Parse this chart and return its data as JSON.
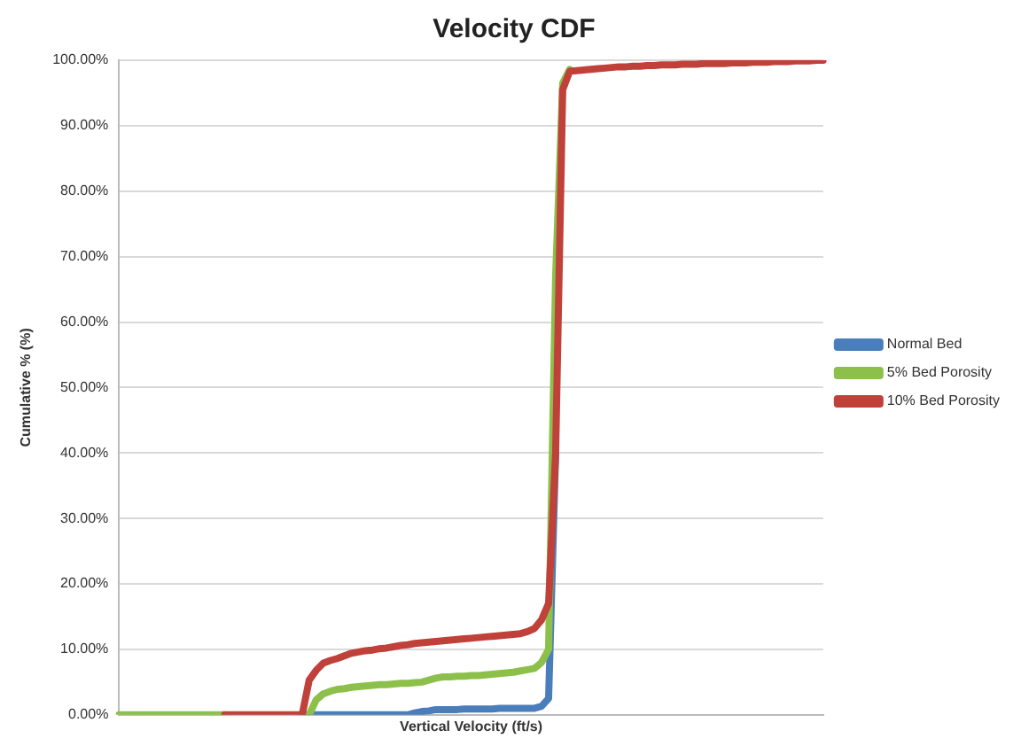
{
  "chart_data": {
    "type": "line",
    "title": "Velocity CDF",
    "xlabel": "Vertical Velocity (ft/s)",
    "ylabel": "Cumulative % (%)",
    "categories": [
      null,
      null,
      null,
      null,
      null,
      null,
      null,
      null,
      null,
      null,
      null,
      null,
      null,
      null,
      null,
      null,
      null,
      null,
      null,
      null,
      null,
      null,
      null,
      null,
      null,
      null,
      null,
      null,
      null,
      null,
      null,
      null,
      null,
      null,
      null,
      null,
      null,
      null,
      null,
      null,
      null,
      null,
      null,
      null,
      null,
      null,
      null,
      null,
      null,
      null,
      null,
      null,
      null,
      null,
      null,
      null,
      null,
      null,
      null,
      null,
      null,
      null,
      null,
      null,
      null,
      null,
      null,
      null,
      null,
      null,
      null,
      null,
      null,
      null,
      null,
      null,
      null,
      null,
      null,
      null,
      null,
      null,
      null,
      null,
      null,
      null,
      null,
      null,
      null,
      null,
      null,
      null,
      null,
      null,
      null,
      null,
      null,
      null,
      null,
      null,
      null
    ],
    "series": [
      {
        "name": "Normal Bed",
        "color": "#4a7ebb",
        "values": [
          null,
          null,
          null,
          null,
          null,
          null,
          null,
          null,
          null,
          null,
          null,
          null,
          null,
          null,
          null,
          null,
          null,
          null,
          null,
          null,
          null,
          null,
          null,
          null,
          null,
          null,
          0,
          0,
          0,
          0,
          0,
          0,
          0,
          0,
          0,
          0,
          0,
          0,
          0,
          0,
          0,
          0,
          0.3,
          0.5,
          0.6,
          0.8,
          0.8,
          0.8,
          0.8,
          0.9,
          0.9,
          0.9,
          0.9,
          0.9,
          1.0,
          1.0,
          1.0,
          1.0,
          1.0,
          1.0,
          1.3,
          2.5,
          40,
          null,
          null,
          null,
          null,
          null,
          null,
          null,
          null,
          null,
          null,
          null,
          null,
          null,
          null,
          null,
          null,
          null,
          null,
          null,
          null,
          null,
          null,
          null,
          null,
          null,
          null,
          null,
          null,
          null,
          null,
          null,
          null,
          null,
          null,
          null,
          null,
          null,
          null
        ]
      },
      {
        "name": "5% Bed Porosity",
        "color": "#8cc04a",
        "values": [
          0,
          0,
          0,
          0,
          0,
          0,
          0,
          0,
          0,
          0,
          0,
          0,
          0,
          0,
          0,
          0,
          null,
          null,
          null,
          null,
          null,
          null,
          null,
          null,
          null,
          null,
          null,
          0,
          2.3,
          3.2,
          3.6,
          3.9,
          4.0,
          4.2,
          4.3,
          4.4,
          4.5,
          4.6,
          4.6,
          4.7,
          4.8,
          4.8,
          4.9,
          5.0,
          5.3,
          5.6,
          5.8,
          5.8,
          5.9,
          5.9,
          6.0,
          6.0,
          6.1,
          6.2,
          6.3,
          6.4,
          6.5,
          6.7,
          6.9,
          7.1,
          8,
          10,
          67,
          96.5,
          98.6,
          null,
          null,
          null,
          null,
          null,
          null,
          null,
          null,
          null,
          null,
          null,
          null,
          null,
          null,
          null,
          null,
          null,
          null,
          null,
          null,
          null,
          null,
          null,
          null,
          null,
          null,
          null,
          null,
          null,
          null,
          null,
          null,
          null,
          null,
          null,
          null
        ]
      },
      {
        "name": "10% Bed Porosity",
        "color": "#c0403a",
        "values": [
          null,
          null,
          null,
          null,
          null,
          null,
          null,
          null,
          null,
          null,
          null,
          null,
          null,
          null,
          null,
          0,
          0,
          0,
          0,
          0,
          0,
          0,
          0,
          0,
          0,
          0,
          0,
          5.3,
          6.8,
          7.9,
          8.3,
          8.6,
          9.0,
          9.4,
          9.6,
          9.8,
          9.9,
          10.1,
          10.2,
          10.4,
          10.6,
          10.7,
          10.9,
          11.0,
          11.1,
          11.2,
          11.3,
          11.4,
          11.5,
          11.6,
          11.7,
          11.8,
          11.9,
          12.0,
          12.1,
          12.2,
          12.3,
          12.4,
          12.7,
          13.2,
          14.5,
          17,
          40,
          95.5,
          98.3,
          98.4,
          98.5,
          98.6,
          98.7,
          98.8,
          98.9,
          99.0,
          99.0,
          99.1,
          99.1,
          99.2,
          99.2,
          99.3,
          99.3,
          99.3,
          99.4,
          99.4,
          99.4,
          99.5,
          99.5,
          99.5,
          99.5,
          99.6,
          99.6,
          99.6,
          99.7,
          99.7,
          99.7,
          99.8,
          99.8,
          99.8,
          99.9,
          99.9,
          99.9,
          100,
          100
        ]
      }
    ],
    "ylim": [
      0,
      100
    ],
    "yticks": [
      {
        "value": 0,
        "label": "0.00%"
      },
      {
        "value": 10,
        "label": "10.00%"
      },
      {
        "value": 20,
        "label": "20.00%"
      },
      {
        "value": 30,
        "label": "30.00%"
      },
      {
        "value": 40,
        "label": "40.00%"
      },
      {
        "value": 50,
        "label": "50.00%"
      },
      {
        "value": 60,
        "label": "60.00%"
      },
      {
        "value": 70,
        "label": "70.00%"
      },
      {
        "value": 80,
        "label": "80.00%"
      },
      {
        "value": 90,
        "label": "90.00%"
      },
      {
        "value": 100,
        "label": "100.00%"
      }
    ],
    "grid": "y",
    "legend": "right",
    "marker": "none",
    "line_style": "solid"
  }
}
